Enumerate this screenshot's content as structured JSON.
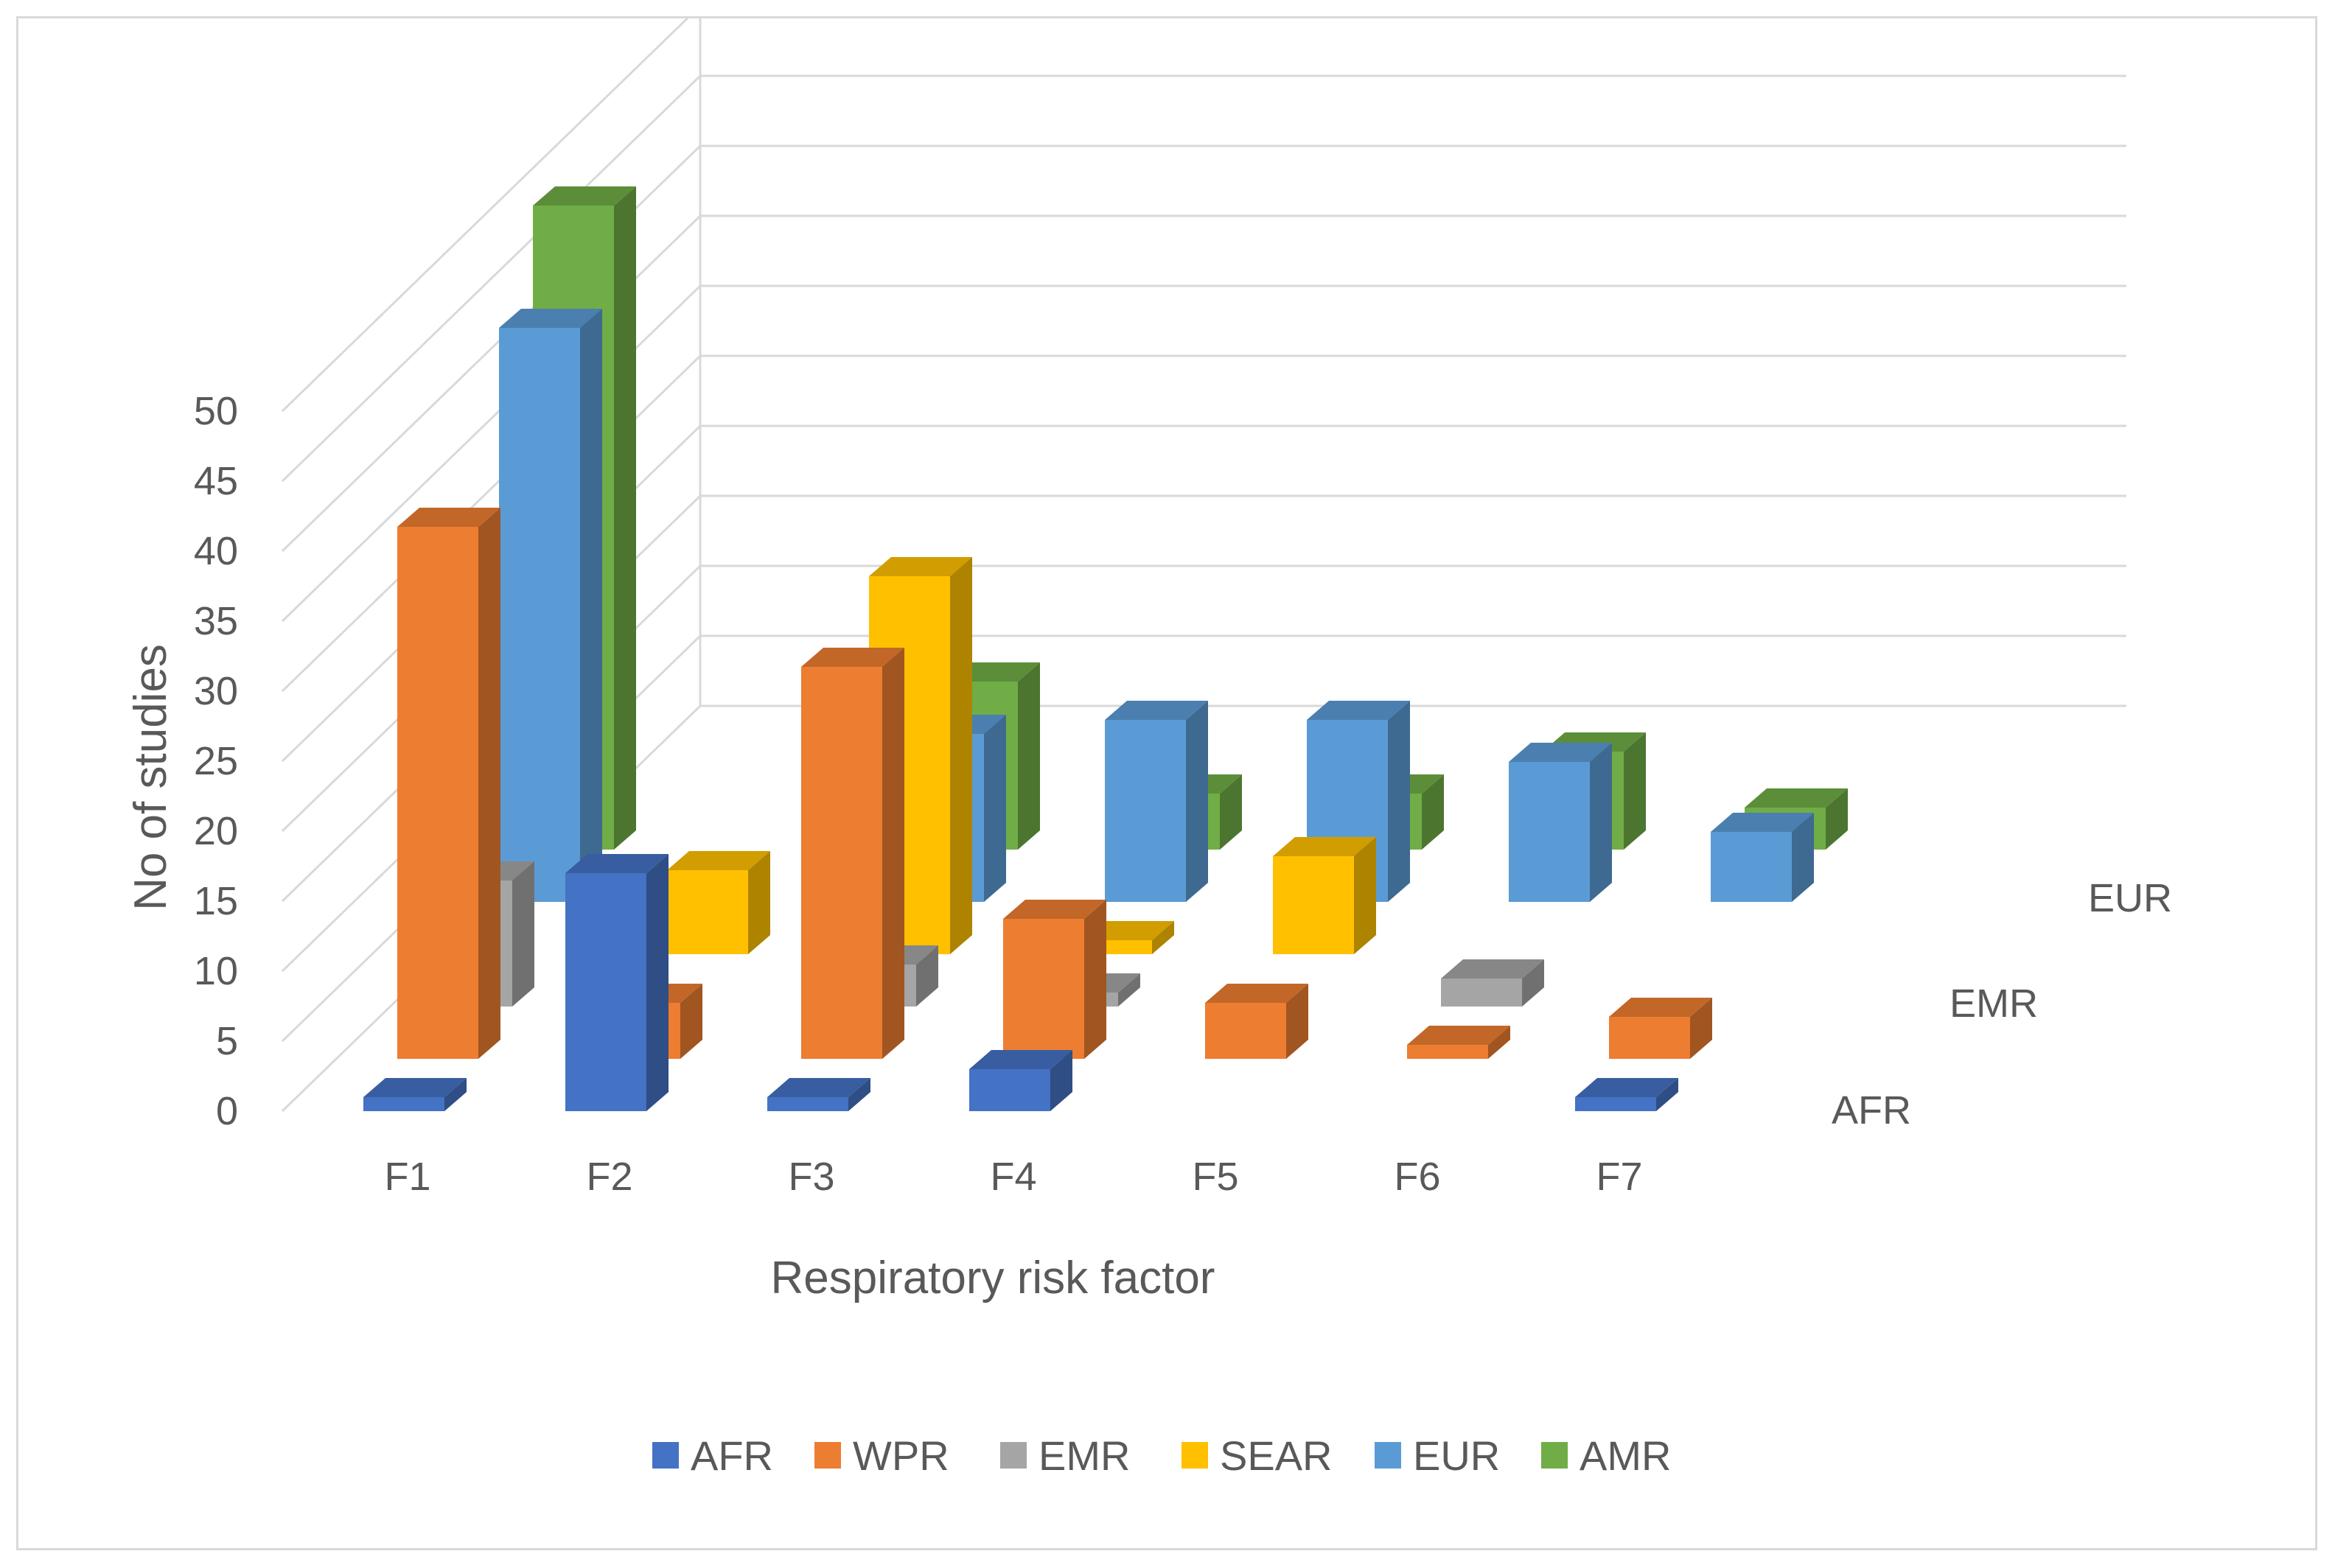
{
  "chart_data": {
    "type": "bar",
    "subtype": "3d-column",
    "title": "",
    "xlabel": "Respiratory risk factor",
    "ylabel": "No of studies",
    "ylim": [
      0,
      50
    ],
    "yticks": [
      0,
      5,
      10,
      15,
      20,
      25,
      30,
      35,
      40,
      45,
      50
    ],
    "categories": [
      "F1",
      "F2",
      "F3",
      "F4",
      "F5",
      "F6",
      "F7"
    ],
    "depth_labels": [
      "AFR",
      "EMR",
      "EUR"
    ],
    "legend_position": "bottom",
    "series": [
      {
        "name": "AFR",
        "color": "#4472C4",
        "values": [
          1,
          17,
          1,
          3,
          0,
          0,
          1
        ]
      },
      {
        "name": "WPR",
        "color": "#ED7D31",
        "values": [
          38,
          4,
          28,
          10,
          4,
          1,
          3
        ]
      },
      {
        "name": "EMR",
        "color": "#A5A5A5",
        "values": [
          9,
          0,
          3,
          1,
          0,
          2,
          0
        ]
      },
      {
        "name": "SEAR",
        "color": "#FFC000",
        "values": [
          0,
          6,
          27,
          1,
          7,
          0,
          0
        ]
      },
      {
        "name": "EUR",
        "color": "#5B9BD5",
        "values": [
          41,
          0,
          12,
          13,
          13,
          10,
          5
        ]
      },
      {
        "name": "AMR",
        "color": "#70AD47",
        "values": [
          46,
          0,
          12,
          4,
          4,
          7,
          3
        ]
      }
    ]
  }
}
